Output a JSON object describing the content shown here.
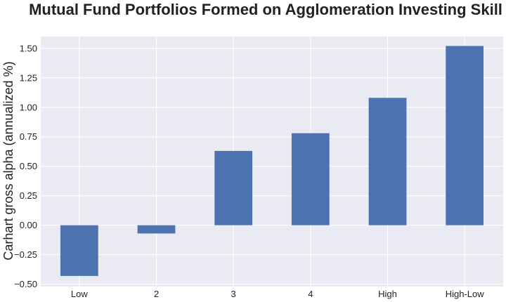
{
  "chart_data": {
    "type": "bar",
    "title": "Mutual Fund Portfolios Formed on Agglomeration Investing Skill",
    "xlabel": "",
    "ylabel": "Carhart gross alpha (annualized %)",
    "categories": [
      "Low",
      "2",
      "3",
      "4",
      "High",
      "High-Low"
    ],
    "values": [
      -0.43,
      -0.07,
      0.63,
      0.78,
      1.08,
      1.52
    ],
    "ylim": [
      -0.52,
      1.6
    ],
    "yticks": [
      -0.5,
      -0.25,
      0.0,
      0.25,
      0.5,
      0.75,
      1.0,
      1.25,
      1.5
    ],
    "ytick_labels": [
      "−0.50",
      "−0.25",
      "0.00",
      "0.25",
      "0.50",
      "0.75",
      "1.00",
      "1.25",
      "1.50"
    ],
    "grid": true,
    "legend": "none",
    "colors": {
      "bar": "#4C72B0",
      "background": "#EAEAF2",
      "grid": "#FFFFFF"
    }
  }
}
